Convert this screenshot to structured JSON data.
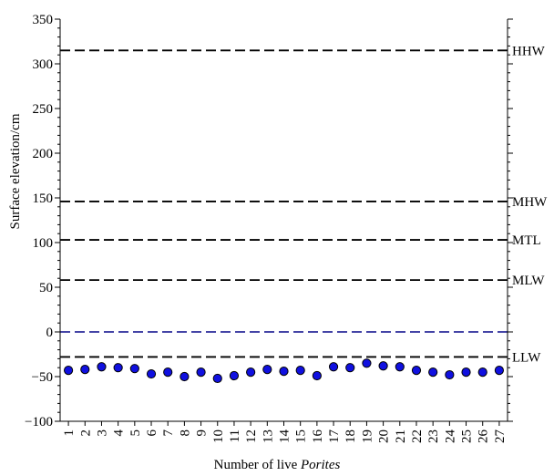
{
  "chart_data": {
    "type": "scatter",
    "xlabel_prefix": "Number of live ",
    "xlabel_italic": "Porites",
    "ylabel": "Surface elevation/cm",
    "ylim": [
      -100,
      350
    ],
    "yticks": [
      -100,
      -50,
      0,
      50,
      100,
      150,
      200,
      250,
      300,
      350
    ],
    "x": [
      1,
      2,
      3,
      4,
      5,
      6,
      7,
      8,
      9,
      10,
      11,
      12,
      13,
      14,
      15,
      16,
      17,
      18,
      19,
      20,
      21,
      22,
      23,
      24,
      25,
      26,
      27
    ],
    "values": [
      -43,
      -42,
      -39,
      -40,
      -41,
      -47,
      -45,
      -50,
      -45,
      -52,
      -49,
      -45,
      -42,
      -44,
      -43,
      -49,
      -39,
      -40,
      -35,
      -38,
      -39,
      -43,
      -45,
      -48,
      -45,
      -45,
      -43
    ],
    "marker_color": "#1010e0",
    "reference_lines": [
      {
        "label": "HHW",
        "value": 315,
        "color": "#000000"
      },
      {
        "label": "MHW",
        "value": 146,
        "color": "#000000"
      },
      {
        "label": "MTL",
        "value": 103,
        "color": "#000000"
      },
      {
        "label": "MLW",
        "value": 58,
        "color": "#000000"
      },
      {
        "label": "",
        "value": 0,
        "color": "#2a2a9a"
      },
      {
        "label": "LLW",
        "value": -28,
        "color": "#000000"
      }
    ],
    "grid": false
  }
}
